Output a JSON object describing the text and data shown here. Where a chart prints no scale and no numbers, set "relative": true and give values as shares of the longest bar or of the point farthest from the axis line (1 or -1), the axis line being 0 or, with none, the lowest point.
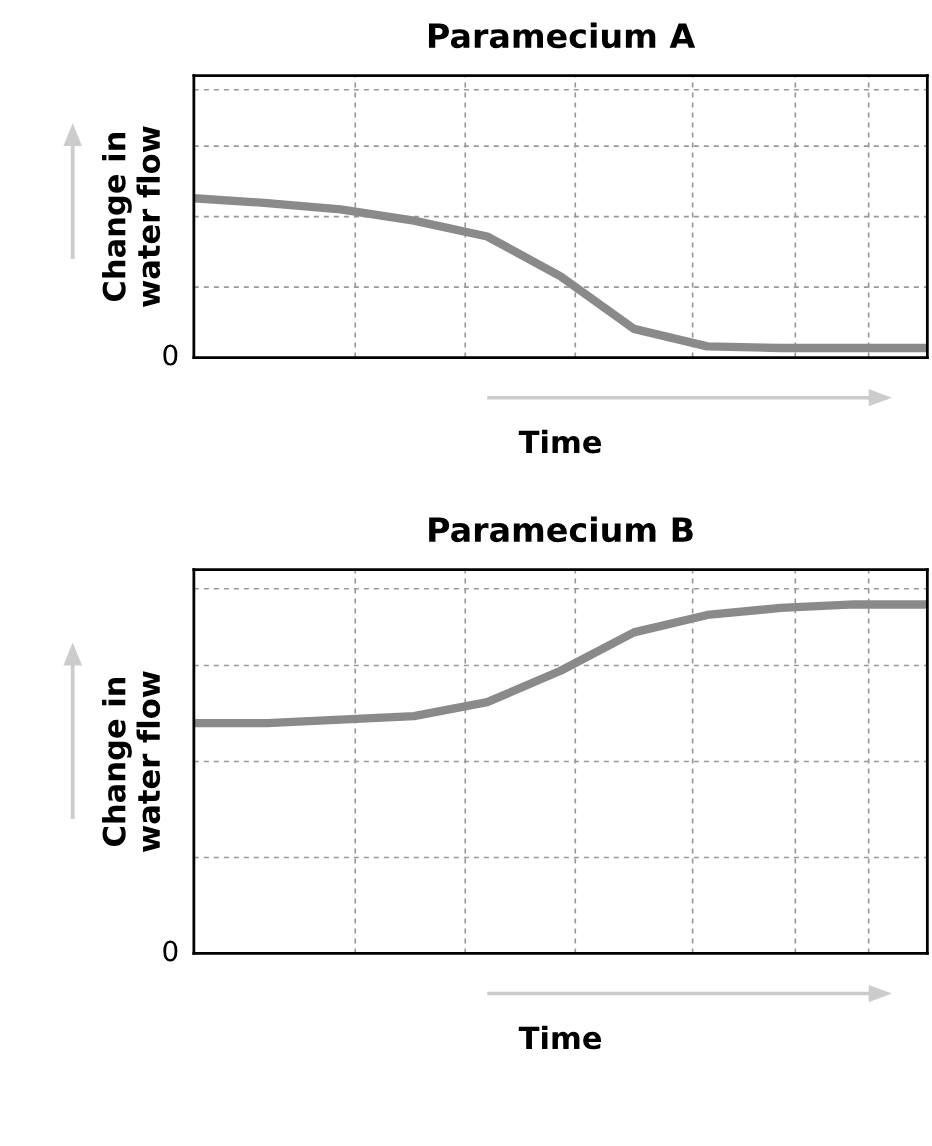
{
  "chart_data": [
    {
      "type": "line",
      "title": "Paramecium A",
      "xlabel": "Time",
      "ylabel": "Change in\nwater flow",
      "relative": true,
      "tick_labels": false,
      "grid": true,
      "annotations": [
        "0"
      ],
      "categories": [
        null,
        null,
        null,
        null,
        null,
        null,
        null,
        null,
        null,
        null,
        null
      ],
      "series": [
        {
          "color": "#8a8a8a",
          "values": [
            1,
            0.97,
            0.93,
            0.86,
            0.76,
            0.51,
            0.18,
            0.07,
            0.06,
            0.06,
            0.06
          ]
        }
      ]
    },
    {
      "type": "line",
      "title": "Paramecium B",
      "xlabel": "Time",
      "ylabel": "Change in\nwater flow",
      "relative": true,
      "tick_labels": false,
      "grid": true,
      "annotations": [
        "0"
      ],
      "categories": [
        null,
        null,
        null,
        null,
        null,
        null,
        null,
        null,
        null,
        null,
        null
      ],
      "series": [
        {
          "color": "#8a8a8a",
          "values": [
            0.66,
            0.66,
            0.67,
            0.68,
            0.72,
            0.81,
            0.92,
            0.97,
            0.99,
            1,
            1
          ]
        }
      ]
    }
  ]
}
